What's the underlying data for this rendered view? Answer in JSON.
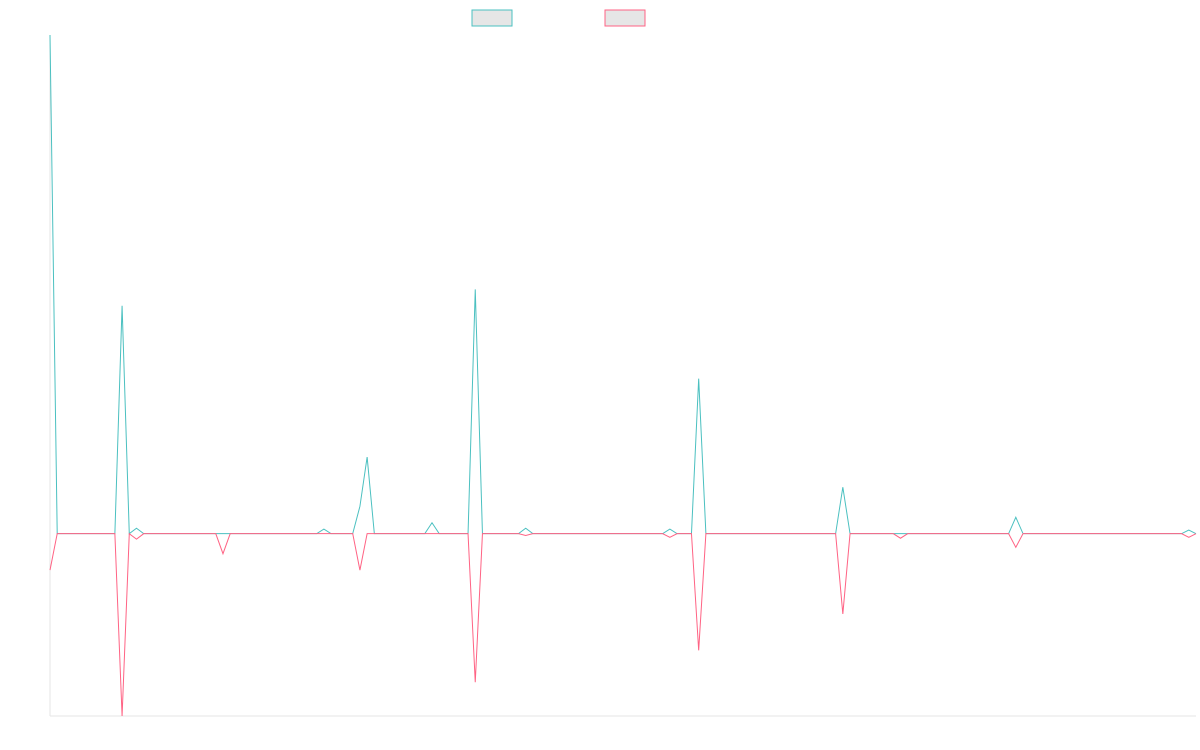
{
  "chart_data": {
    "type": "line",
    "title": "",
    "xlabel": "",
    "ylabel": "",
    "x_count": 160,
    "ylim": [
      -200,
      547
    ],
    "grid": false,
    "legend_position": "top-center",
    "series": [
      {
        "color": "#4bc0c0",
        "fill": "#e6e6e6",
        "spikes": [
          [
            0,
            547
          ],
          [
            1,
            0
          ],
          [
            10,
            250
          ],
          [
            12,
            6
          ],
          [
            38,
            5
          ],
          [
            43,
            30
          ],
          [
            44,
            84
          ],
          [
            53,
            12
          ],
          [
            59,
            268
          ],
          [
            66,
            6
          ],
          [
            86,
            5
          ],
          [
            90,
            170
          ],
          [
            110,
            51
          ],
          [
            134,
            18
          ],
          [
            158,
            4
          ]
        ]
      },
      {
        "color": "#ff6384",
        "fill": "#e6e6e6",
        "spikes": [
          [
            0,
            -40
          ],
          [
            1,
            0
          ],
          [
            10,
            -200
          ],
          [
            12,
            -6
          ],
          [
            24,
            -22
          ],
          [
            43,
            -40
          ],
          [
            59,
            -163
          ],
          [
            66,
            -2
          ],
          [
            86,
            -4
          ],
          [
            90,
            -128
          ],
          [
            118,
            -5
          ],
          [
            110,
            -88
          ],
          [
            134,
            -15
          ],
          [
            158,
            -4
          ]
        ]
      }
    ]
  }
}
